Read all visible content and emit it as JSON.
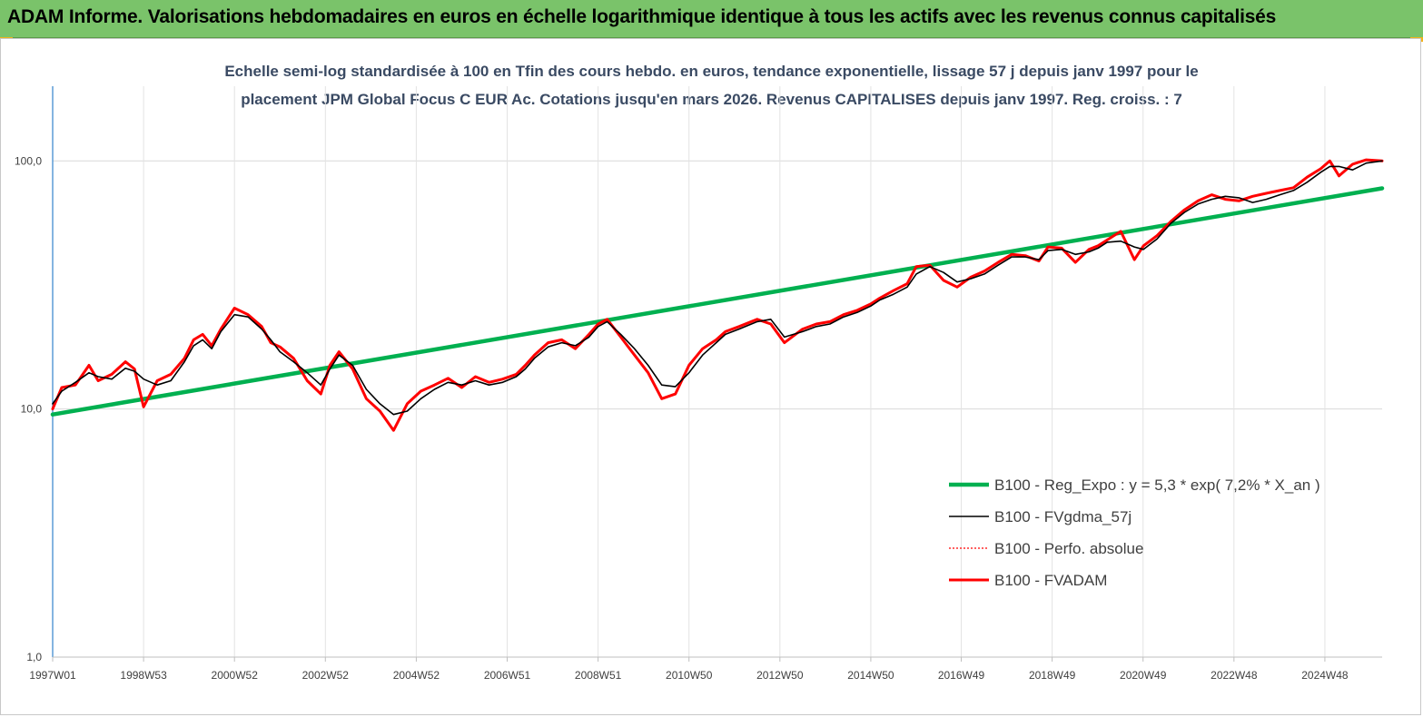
{
  "header": {
    "title": "ADAM Informe. Valorisations hebdomadaires en euros en échelle logarithmique identique à tous les actifs avec les revenus connus capitalisés"
  },
  "colors": {
    "banner": "#7ac36a",
    "corner": "#f3b21b",
    "regression": "#00b050",
    "smoothed": "#000000",
    "absolute": "#ff0000",
    "fvadam": "#ff0000"
  },
  "chart_data": {
    "type": "line",
    "title_line1": "Echelle semi-log standardisée à 100 en Tfin des cours hebdo. en euros, tendance exponentielle, lissage 57 j depuis janv 1997 pour le",
    "title_line2": "placement JPM Global Focus C EUR Ac. Cotations jusqu'en mars 2026. Revenus CAPITALISES depuis janv 1997. Reg. croiss. : 7",
    "y_scale": "log",
    "ylim": [
      1,
      200
    ],
    "y_ticks": [
      1,
      10,
      100
    ],
    "y_tick_labels": [
      "1,0",
      "10,0",
      "100,0"
    ],
    "x_range": [
      1997.0,
      2026.25
    ],
    "x_tick_positions": [
      1997.0,
      1999.0,
      2001.0,
      2003.0,
      2005.0,
      2007.0,
      2009.0,
      2011.0,
      2013.0,
      2015.0,
      2016.99,
      2018.99,
      2020.99,
      2022.99,
      2024.99
    ],
    "x_tick_labels": [
      "1997W01",
      "1998W53",
      "2000W52",
      "2002W52",
      "2004W52",
      "2006W51",
      "2008W51",
      "2010W50",
      "2012W50",
      "2014W50",
      "2016W49",
      "2018W49",
      "2020W49",
      "2022W48",
      "2024W48"
    ],
    "grid": true,
    "legend_position": "lower-right",
    "series": [
      {
        "name": "B100 - Reg_Expo : y = 5,3 * exp( 7,2% *  X_an )",
        "style": "green-thick",
        "x": [
          1997.0,
          2026.25
        ],
        "y": [
          9.5,
          77.5
        ]
      },
      {
        "name": "B100 - FVgdma_57j",
        "style": "black-thin",
        "x": [
          1997.0,
          1997.2,
          1997.5,
          1997.8,
          1998.0,
          1998.3,
          1998.6,
          1998.8,
          1999.0,
          1999.3,
          1999.6,
          1999.9,
          2000.1,
          2000.3,
          2000.5,
          2000.7,
          2001.0,
          2001.3,
          2001.6,
          2001.8,
          2002.0,
          2002.3,
          2002.6,
          2002.9,
          2003.1,
          2003.3,
          2003.6,
          2003.9,
          2004.2,
          2004.5,
          2004.8,
          2005.1,
          2005.4,
          2005.7,
          2006.0,
          2006.3,
          2006.6,
          2006.9,
          2007.2,
          2007.4,
          2007.6,
          2007.9,
          2008.2,
          2008.5,
          2008.8,
          2009.0,
          2009.2,
          2009.5,
          2009.8,
          2010.1,
          2010.4,
          2010.7,
          2011.0,
          2011.3,
          2011.6,
          2011.8,
          2012.1,
          2012.5,
          2012.8,
          2013.1,
          2013.5,
          2013.8,
          2014.1,
          2014.4,
          2014.7,
          2015.0,
          2015.2,
          2015.5,
          2015.8,
          2016.0,
          2016.3,
          2016.6,
          2016.9,
          2017.2,
          2017.5,
          2017.8,
          2018.1,
          2018.4,
          2018.7,
          2018.9,
          2019.2,
          2019.5,
          2019.8,
          2020.0,
          2020.2,
          2020.5,
          2020.8,
          2021.0,
          2021.3,
          2021.6,
          2021.9,
          2022.2,
          2022.5,
          2022.8,
          2023.1,
          2023.4,
          2023.7,
          2024.0,
          2024.3,
          2024.6,
          2024.9,
          2025.1,
          2025.3,
          2025.6,
          2025.9,
          2026.25
        ],
        "y": [
          10.5,
          11.8,
          12.8,
          14.0,
          13.5,
          13.2,
          14.6,
          14.2,
          13.2,
          12.5,
          13.0,
          15.5,
          18.0,
          19.0,
          17.5,
          20.5,
          24.0,
          23.5,
          21.0,
          19.0,
          17.0,
          15.5,
          14.0,
          12.5,
          14.5,
          16.5,
          15.0,
          12.0,
          10.5,
          9.5,
          9.8,
          11.0,
          12.0,
          12.8,
          12.5,
          13.0,
          12.5,
          12.8,
          13.5,
          14.5,
          16.0,
          17.8,
          18.5,
          18.0,
          19.5,
          21.5,
          22.5,
          20.0,
          17.5,
          15.0,
          12.5,
          12.3,
          14.0,
          16.5,
          18.5,
          20.0,
          21.0,
          22.5,
          23.0,
          19.5,
          20.5,
          21.5,
          22.0,
          23.5,
          24.5,
          26.0,
          27.5,
          29.0,
          31.0,
          35.0,
          37.5,
          35.5,
          32.5,
          33.5,
          35.0,
          38.0,
          41.0,
          41.0,
          40.0,
          43.5,
          44.0,
          42.0,
          43.0,
          44.5,
          47.0,
          47.5,
          45.0,
          44.0,
          48.5,
          56.0,
          62.0,
          67.0,
          70.0,
          72.0,
          71.0,
          68.0,
          70.0,
          73.0,
          76.0,
          82.0,
          90.0,
          95.0,
          95.0,
          92.0,
          98.0,
          100.0
        ]
      },
      {
        "name": "B100 - Perfo. absolue",
        "style": "red-dotted",
        "x": [
          1997.0,
          1997.2,
          1997.5,
          1997.8,
          1998.0,
          1998.3,
          1998.6,
          1998.8,
          1999.0,
          1999.3,
          1999.6,
          1999.9,
          2000.1,
          2000.3,
          2000.5,
          2000.7,
          2001.0,
          2001.3,
          2001.6,
          2001.8,
          2002.0,
          2002.3,
          2002.6,
          2002.9,
          2003.1,
          2003.3,
          2003.6,
          2003.9,
          2004.2,
          2004.5,
          2004.8,
          2005.1,
          2005.4,
          2005.7,
          2006.0,
          2006.3,
          2006.6,
          2006.9,
          2007.2,
          2007.4,
          2007.6,
          2007.9,
          2008.2,
          2008.5,
          2008.8,
          2009.0,
          2009.2,
          2009.5,
          2009.8,
          2010.1,
          2010.4,
          2010.7,
          2011.0,
          2011.3,
          2011.6,
          2011.8,
          2012.1,
          2012.5,
          2012.8,
          2013.1,
          2013.5,
          2013.8,
          2014.1,
          2014.4,
          2014.7,
          2015.0,
          2015.2,
          2015.5,
          2015.8,
          2016.0,
          2016.3,
          2016.6,
          2016.9,
          2017.2,
          2017.5,
          2017.8,
          2018.1,
          2018.4,
          2018.7,
          2018.9,
          2019.2,
          2019.5,
          2019.8,
          2020.0,
          2020.2,
          2020.5,
          2020.8,
          2021.0,
          2021.3,
          2021.6,
          2021.9,
          2022.2,
          2022.5,
          2022.8,
          2023.1,
          2023.4,
          2023.7,
          2024.0,
          2024.3,
          2024.6,
          2024.9,
          2025.1,
          2025.3,
          2025.6,
          2025.9,
          2026.25
        ],
        "y": [
          10.0,
          12.2,
          12.5,
          15.0,
          13.0,
          13.8,
          15.5,
          14.5,
          10.2,
          13.0,
          13.8,
          16.0,
          19.0,
          20.0,
          18.0,
          21.0,
          25.5,
          24.0,
          21.5,
          18.5,
          17.8,
          16.0,
          13.0,
          11.5,
          15.0,
          17.0,
          14.5,
          11.0,
          9.8,
          8.2,
          10.5,
          11.8,
          12.5,
          13.3,
          12.2,
          13.5,
          12.8,
          13.2,
          13.8,
          15.0,
          16.5,
          18.5,
          19.0,
          17.5,
          20.0,
          22.0,
          23.0,
          19.5,
          16.5,
          14.0,
          11.0,
          11.5,
          15.0,
          17.5,
          19.0,
          20.5,
          21.5,
          23.0,
          22.0,
          18.5,
          21.0,
          22.0,
          22.5,
          24.0,
          25.0,
          26.5,
          28.0,
          30.0,
          32.0,
          37.5,
          38.0,
          33.0,
          31.0,
          34.0,
          36.0,
          39.0,
          42.0,
          41.5,
          39.5,
          45.0,
          44.5,
          39.0,
          44.0,
          45.5,
          48.0,
          52.0,
          40.0,
          45.5,
          50.0,
          57.0,
          63.5,
          69.0,
          73.0,
          70.0,
          69.0,
          72.0,
          74.0,
          76.0,
          78.0,
          86.0,
          93.0,
          100.0,
          87.0,
          97.0,
          101.0,
          100.0
        ]
      },
      {
        "name": "B100 - FVADAM",
        "style": "red-thick",
        "x": [
          1997.0,
          1997.2,
          1997.5,
          1997.8,
          1998.0,
          1998.3,
          1998.6,
          1998.8,
          1999.0,
          1999.3,
          1999.6,
          1999.9,
          2000.1,
          2000.3,
          2000.5,
          2000.7,
          2001.0,
          2001.3,
          2001.6,
          2001.8,
          2002.0,
          2002.3,
          2002.6,
          2002.9,
          2003.1,
          2003.3,
          2003.6,
          2003.9,
          2004.2,
          2004.5,
          2004.8,
          2005.1,
          2005.4,
          2005.7,
          2006.0,
          2006.3,
          2006.6,
          2006.9,
          2007.2,
          2007.4,
          2007.6,
          2007.9,
          2008.2,
          2008.5,
          2008.8,
          2009.0,
          2009.2,
          2009.5,
          2009.8,
          2010.1,
          2010.4,
          2010.7,
          2011.0,
          2011.3,
          2011.6,
          2011.8,
          2012.1,
          2012.5,
          2012.8,
          2013.1,
          2013.5,
          2013.8,
          2014.1,
          2014.4,
          2014.7,
          2015.0,
          2015.2,
          2015.5,
          2015.8,
          2016.0,
          2016.3,
          2016.6,
          2016.9,
          2017.2,
          2017.5,
          2017.8,
          2018.1,
          2018.4,
          2018.7,
          2018.9,
          2019.2,
          2019.5,
          2019.8,
          2020.0,
          2020.2,
          2020.5,
          2020.8,
          2021.0,
          2021.3,
          2021.6,
          2021.9,
          2022.2,
          2022.5,
          2022.8,
          2023.1,
          2023.4,
          2023.7,
          2024.0,
          2024.3,
          2024.6,
          2024.9,
          2025.1,
          2025.3,
          2025.6,
          2025.9,
          2026.25
        ],
        "y": [
          10.0,
          12.2,
          12.5,
          15.0,
          13.0,
          13.8,
          15.5,
          14.5,
          10.2,
          13.0,
          13.8,
          16.0,
          19.0,
          20.0,
          18.0,
          21.0,
          25.5,
          24.0,
          21.5,
          18.5,
          17.8,
          16.0,
          13.0,
          11.5,
          15.0,
          17.0,
          14.5,
          11.0,
          9.8,
          8.2,
          10.5,
          11.8,
          12.5,
          13.3,
          12.2,
          13.5,
          12.8,
          13.2,
          13.8,
          15.0,
          16.5,
          18.5,
          19.0,
          17.5,
          20.0,
          22.0,
          23.0,
          19.5,
          16.5,
          14.0,
          11.0,
          11.5,
          15.0,
          17.5,
          19.0,
          20.5,
          21.5,
          23.0,
          22.0,
          18.5,
          21.0,
          22.0,
          22.5,
          24.0,
          25.0,
          26.5,
          28.0,
          30.0,
          32.0,
          37.5,
          38.0,
          33.0,
          31.0,
          34.0,
          36.0,
          39.0,
          42.0,
          41.5,
          39.5,
          45.0,
          44.5,
          39.0,
          44.0,
          45.5,
          48.0,
          52.0,
          40.0,
          45.5,
          50.0,
          57.0,
          63.5,
          69.0,
          73.0,
          70.0,
          69.0,
          72.0,
          74.0,
          76.0,
          78.0,
          86.0,
          93.0,
          100.0,
          87.0,
          97.0,
          101.0,
          100.0
        ]
      }
    ]
  }
}
